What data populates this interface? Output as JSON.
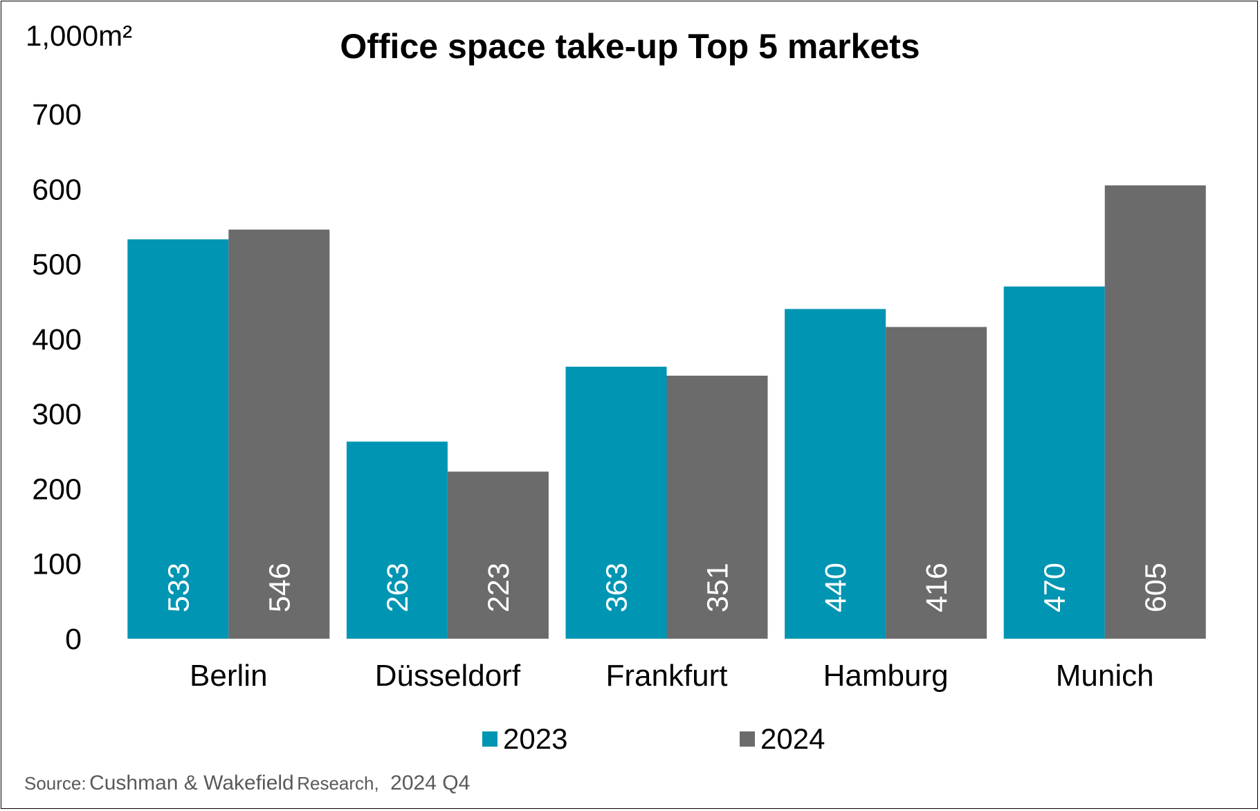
{
  "chart_data": {
    "type": "bar",
    "title": "Office space take-up Top 5 markets",
    "unit_label": "1,000m²",
    "categories": [
      "Berlin",
      "Düsseldorf",
      "Frankfurt",
      "Hamburg",
      "Munich"
    ],
    "series": [
      {
        "name": "2023",
        "color": "#0095B3",
        "values": [
          533,
          263,
          363,
          440,
          470
        ]
      },
      {
        "name": "2024",
        "color": "#6B6B6B",
        "values": [
          546,
          223,
          351,
          416,
          605
        ]
      }
    ],
    "ylim": [
      0,
      700
    ],
    "yticks": [
      "0",
      "100",
      "200",
      "300",
      "400",
      "500",
      "600",
      "700"
    ],
    "grid": false,
    "legend": "bottom",
    "data_labels": "inside-bottom-rotated"
  },
  "source": {
    "prefix": "Source:",
    "name": "Cushman & Wakefield",
    "suffix": "Research,",
    "period": "2024 Q4"
  }
}
